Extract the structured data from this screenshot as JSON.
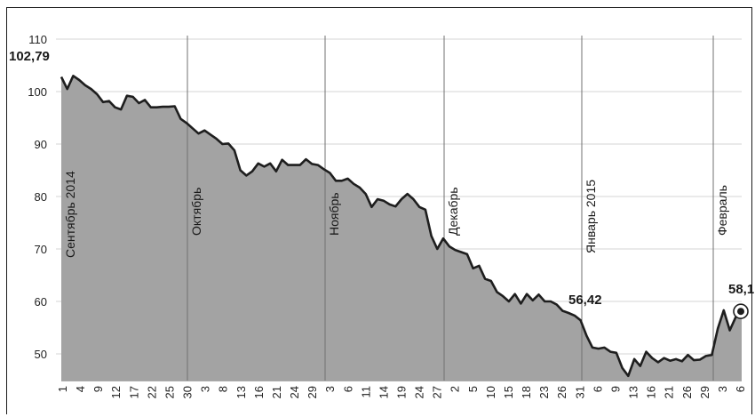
{
  "chart_data": {
    "type": "area",
    "title": "",
    "xlabel": "",
    "ylabel": "",
    "ylim": [
      45,
      110
    ],
    "y_ticks": [
      50,
      60,
      70,
      80,
      90,
      100,
      110
    ],
    "x_tick_labels": [
      "1",
      "4",
      "9",
      "12",
      "17",
      "22",
      "25",
      "30",
      "3",
      "8",
      "13",
      "16",
      "21",
      "24",
      "29",
      "3",
      "6",
      "11",
      "14",
      "19",
      "24",
      "27",
      "2",
      "5",
      "10",
      "15",
      "18",
      "23",
      "26",
      "31",
      "6",
      "9",
      "13",
      "16",
      "21",
      "26",
      "29",
      "3",
      "6"
    ],
    "month_labels": [
      "Сентябрь 2014",
      "Октябрь",
      "Ноябрь",
      "Декабрь",
      "Январь 2015",
      "Февраль"
    ],
    "annotations": [
      "102,79",
      "56,42",
      "58,1"
    ],
    "series": [
      {
        "values": [
          102.8,
          100.5,
          103.0,
          102.2,
          101.2,
          100.5,
          99.5,
          98.0,
          98.2,
          97.0,
          96.6,
          99.2,
          99.0,
          97.8,
          98.4,
          97.0,
          97.0,
          97.1,
          97.1,
          97.2,
          94.8,
          94.0,
          93.0,
          92.0,
          92.6,
          91.8,
          91.0,
          90.0,
          90.1,
          88.8,
          85.0,
          84.0,
          84.8,
          86.3,
          85.7,
          86.3,
          84.8,
          87.0,
          86.0,
          86.0,
          86.0,
          87.1,
          86.2,
          86.0,
          85.2,
          84.5,
          83.0,
          83.0,
          83.4,
          82.4,
          81.7,
          80.5,
          78.0,
          79.5,
          79.2,
          78.5,
          78.1,
          79.5,
          80.5,
          79.5,
          78.0,
          77.5,
          72.5,
          70.0,
          72.0,
          70.5,
          69.8,
          69.4,
          69.0,
          66.3,
          66.8,
          64.3,
          63.9,
          61.8,
          61.0,
          60.0,
          61.4,
          59.6,
          61.4,
          60.2,
          61.3,
          60.0,
          60.0,
          59.4,
          58.2,
          57.8,
          57.3,
          56.4,
          53.5,
          51.2,
          51.0,
          51.2,
          50.4,
          50.2,
          47.3,
          45.8,
          49.0,
          47.7,
          50.4,
          49.2,
          48.4,
          49.2,
          48.7,
          49.0,
          48.6,
          49.8,
          48.8,
          48.9,
          49.6,
          49.8,
          54.8,
          58.3,
          54.5,
          57.0,
          58.1
        ]
      }
    ],
    "colors": {
      "fill": "#a3a3a3",
      "line": "#1e1e1e",
      "grid": "#d6d6d6",
      "month_line": "#707070"
    }
  }
}
